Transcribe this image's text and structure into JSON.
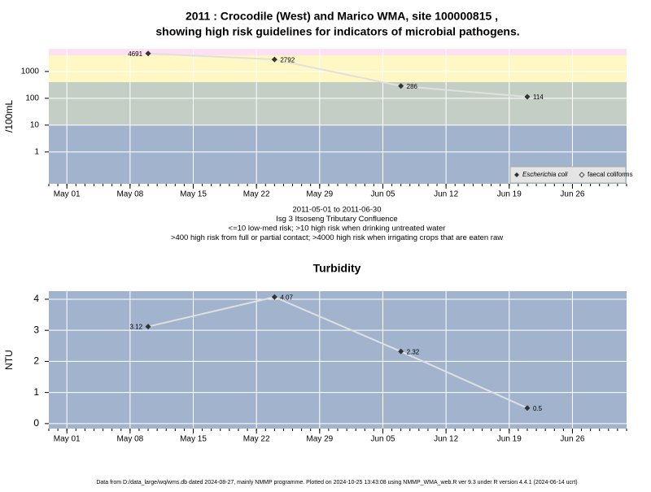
{
  "chart_data": [
    {
      "type": "line",
      "title": "2011 : Crocodile (West) and Marico WMA, site 100000815 ,",
      "subtitle": "showing high risk guidelines for indicators of microbial pathogens.",
      "ylabel": "/100mL",
      "log_y": true,
      "grid": true,
      "legend": "bottom-right",
      "x": [
        "May 10",
        "May 24",
        "Jun 7",
        "Jun 21"
      ],
      "series": [
        {
          "name": "Escherichia coli",
          "color": "#333333",
          "values": [
            4691,
            2792,
            286,
            114
          ]
        },
        {
          "name": "faecal coliforms",
          "color": "#333333",
          "values": [
            null,
            null,
            null,
            null
          ]
        }
      ],
      "bands": [
        {
          "from": 0.065,
          "to": 10,
          "color": "#a2b4cd"
        },
        {
          "from": 10,
          "to": 400,
          "color": "#c4cec4"
        },
        {
          "from": 400,
          "to": 4000,
          "color": "#fff7c4"
        },
        {
          "from": 4000,
          "to": 7000,
          "color": "#fde0f2"
        }
      ],
      "xlim": [
        "Apr 29",
        "Jul 2"
      ],
      "xticks": [
        "May 01",
        "May 08",
        "May 15",
        "May 22",
        "May 29",
        "Jun 05",
        "Jun 12",
        "Jun 19",
        "Jun 26"
      ],
      "ylim": [
        0.065,
        7000
      ],
      "yticks": [
        1,
        10,
        100,
        1000
      ],
      "notes": [
        "2011-05-01 to 2011-06-30",
        "Isg 3 Itsoseng Tributary Confluence",
        "<=10 low-med risk; >10 high risk when drinking untreated water",
        ">400 high risk from full or partial contact; >4000 high risk when irrigating crops that are eaten raw"
      ]
    },
    {
      "type": "line",
      "title": "Turbidity",
      "ylabel": "NTU",
      "log_y": false,
      "grid": true,
      "x": [
        "May 10",
        "May 24",
        "Jun 7",
        "Jun 21"
      ],
      "series": [
        {
          "name": "Turbidity",
          "color": "#333333",
          "values": [
            3.12,
            4.07,
            2.32,
            0.5
          ]
        }
      ],
      "background": "#a2b4cd",
      "xlim": [
        "Apr 29",
        "Jul 2"
      ],
      "xticks": [
        "May 01",
        "May 08",
        "May 15",
        "May 22",
        "May 29",
        "Jun 05",
        "Jun 12",
        "Jun 19",
        "Jun 26"
      ],
      "ylim": [
        -0.16,
        4.26
      ],
      "yticks": [
        0,
        1,
        2,
        3,
        4
      ]
    }
  ],
  "footer": "Data from D:/data_large/wq/wms.db dated 2024-08-27, mainly NMMP programme. Plotted on 2024-10-25 13:43:08 using NMMP_WMA_web.R ver 9.3 under R version 4.4.1 (2024-06-14 ucrt)"
}
